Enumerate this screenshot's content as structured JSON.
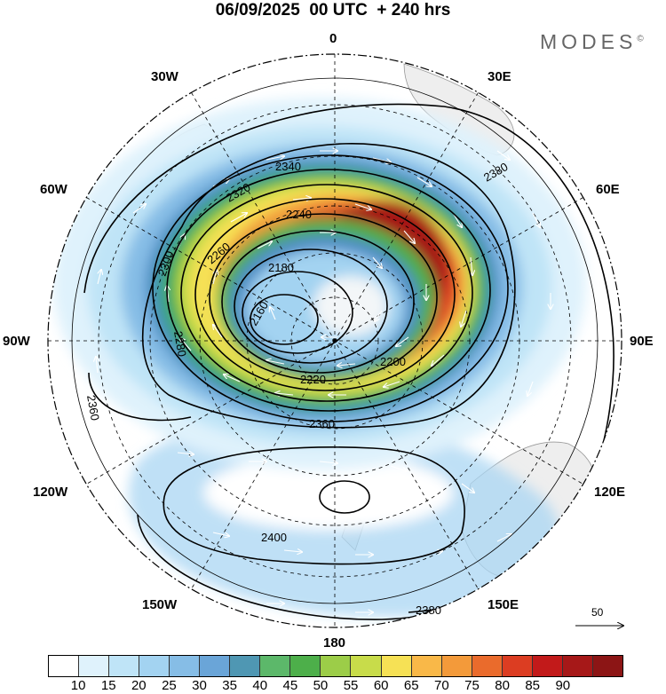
{
  "title": "06/09/2025  00 UTC  + 240 hrs",
  "brand": "MODES",
  "brand_mark": "©",
  "longitude_labels": [
    "0",
    "30E",
    "60E",
    "90E",
    "120E",
    "150E",
    "180",
    "150W",
    "120W",
    "90W",
    "60W",
    "30W"
  ],
  "contours": {
    "inner": [
      {
        "label": "2160"
      },
      {
        "label": "2180"
      },
      {
        "label": "2200"
      },
      {
        "label": "2220"
      },
      {
        "label": "2240"
      },
      {
        "label": "2260"
      },
      {
        "label": "2280"
      },
      {
        "label": "2300"
      },
      {
        "label": "2320"
      },
      {
        "label": "2340"
      },
      {
        "label": "2360"
      },
      {
        "label": "2380"
      }
    ],
    "outer": [
      {
        "label": "2400"
      },
      {
        "label": "2380"
      },
      {
        "label": "2360"
      }
    ]
  },
  "reference_vector": {
    "value": "50"
  },
  "colorbar": {
    "ticks": [
      "10",
      "15",
      "20",
      "25",
      "30",
      "35",
      "40",
      "45",
      "50",
      "55",
      "60",
      "65",
      "70",
      "75",
      "80",
      "85",
      "90"
    ],
    "colors": [
      "#ffffff",
      "#dff2fc",
      "#bfe4f7",
      "#a3d3f1",
      "#86bde6",
      "#6aa5d8",
      "#4f97b3",
      "#5cb86a",
      "#4daf4a",
      "#9ccd48",
      "#c8dc4a",
      "#f6e155",
      "#f9b848",
      "#f39a3a",
      "#ea6b2c",
      "#dc3d22",
      "#c21a1a",
      "#a61818",
      "#8c1515"
    ]
  }
}
